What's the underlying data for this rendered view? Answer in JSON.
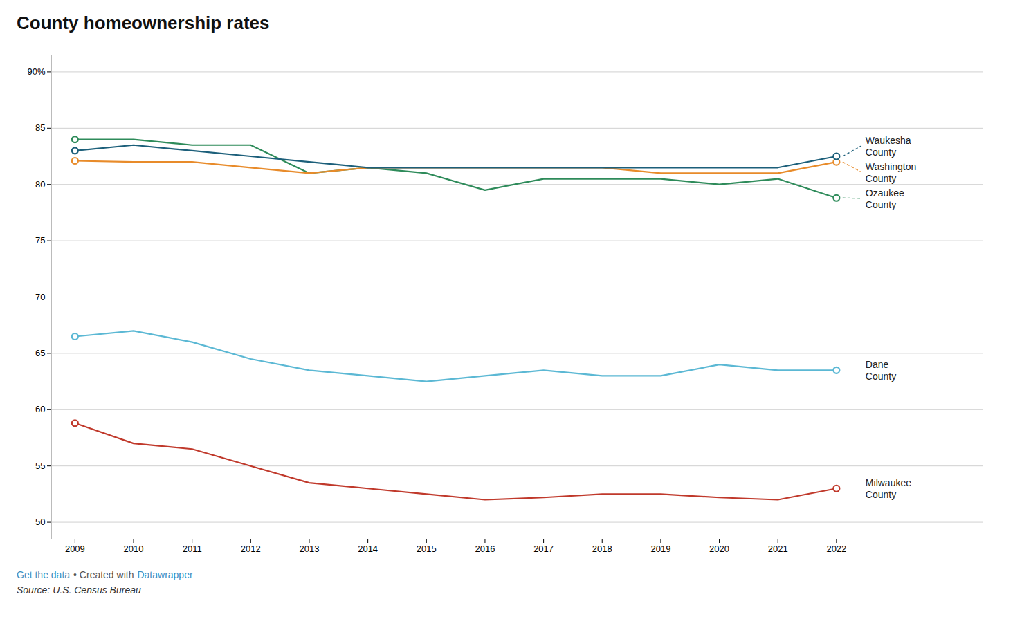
{
  "chart_data": {
    "type": "line",
    "title": "County homeownership rates",
    "x": [
      2009,
      2010,
      2011,
      2012,
      2013,
      2014,
      2015,
      2016,
      2017,
      2018,
      2019,
      2020,
      2021,
      2022
    ],
    "series": [
      {
        "name": "Waukesha County",
        "color": "#1c5f7a",
        "values": [
          83.0,
          83.5,
          83.0,
          82.5,
          82.0,
          81.5,
          81.5,
          81.5,
          81.5,
          81.5,
          81.5,
          81.5,
          81.5,
          82.5
        ]
      },
      {
        "name": "Washington County",
        "color": "#e88b2a",
        "values": [
          82.1,
          82.0,
          82.0,
          81.5,
          81.0,
          81.5,
          81.5,
          81.5,
          81.5,
          81.5,
          81.0,
          81.0,
          81.0,
          82.0
        ]
      },
      {
        "name": "Ozaukee County",
        "color": "#2e8b5a",
        "values": [
          84.0,
          84.0,
          83.5,
          83.5,
          81.0,
          81.5,
          81.0,
          79.5,
          80.5,
          80.5,
          80.5,
          80.0,
          80.5,
          78.8
        ]
      },
      {
        "name": "Dane County",
        "color": "#5bb8d4",
        "values": [
          66.5,
          67.0,
          66.0,
          64.5,
          63.5,
          63.0,
          62.5,
          63.0,
          63.5,
          63.0,
          63.0,
          64.0,
          63.5,
          63.5
        ]
      },
      {
        "name": "Milwaukee County",
        "color": "#c0392b",
        "values": [
          58.8,
          57.0,
          56.5,
          55.0,
          53.5,
          53.0,
          52.5,
          52.0,
          52.2,
          52.5,
          52.5,
          52.2,
          52.0,
          53.0
        ]
      }
    ],
    "xlim": [
      2008.6,
      2024.5
    ],
    "xticks": [
      2009,
      2010,
      2011,
      2012,
      2013,
      2014,
      2015,
      2016,
      2017,
      2018,
      2019,
      2020,
      2021,
      2022
    ],
    "ylim": [
      48.5,
      91.5
    ],
    "yticks": [
      50,
      55,
      60,
      65,
      70,
      75,
      80,
      85,
      {
        "value": 90,
        "label": "90%"
      }
    ],
    "grid": true,
    "marker": "circle",
    "annotations": [
      {
        "text": "Get the data",
        "color": "#3a8fc2"
      },
      {
        "text": "• Created with",
        "color": "#555555"
      },
      {
        "text": "Datawrapper",
        "color": "#3a8fc2"
      },
      {
        "text": "Source: U.S. Census Bureau"
      }
    ]
  }
}
